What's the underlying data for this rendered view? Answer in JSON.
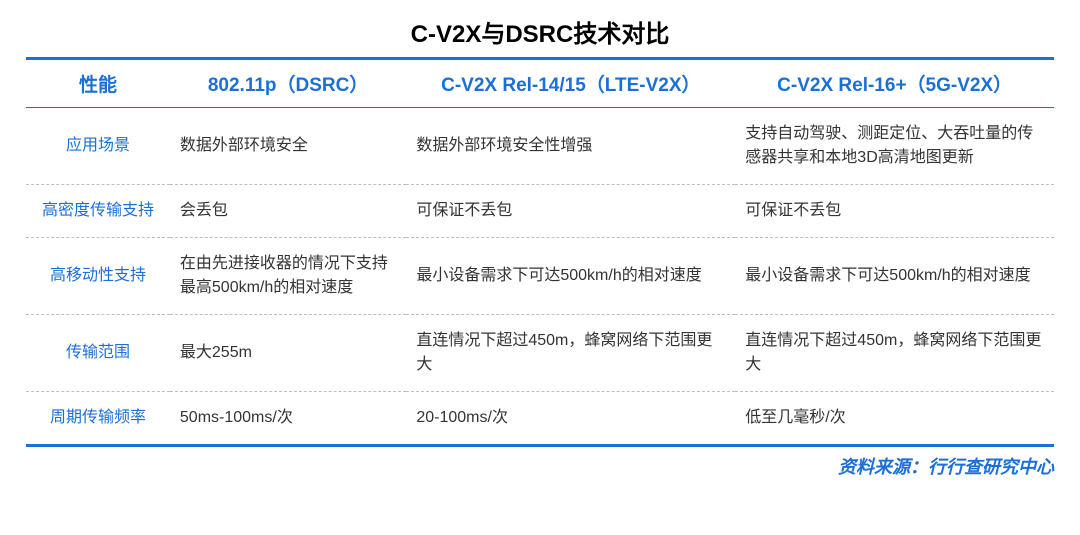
{
  "title": "C-V2X与DSRC技术对比",
  "title_fontsize": 24,
  "header_color": "#1b6fd7",
  "border_color": "#1b6fd7",
  "dash_color": "#bfbfbf",
  "body_text_color": "#333333",
  "background_color": "#ffffff",
  "header_fontsize": 19,
  "cell_fontsize": 16,
  "source_fontsize": 18,
  "col_widths": [
    "14%",
    "23%",
    "32%",
    "31%"
  ],
  "columns": [
    "性能",
    "802.11p（DSRC）",
    "C-V2X Rel-14/15（LTE-V2X）",
    "C-V2X Rel-16+（5G-V2X）"
  ],
  "rows": [
    {
      "label": "应用场景",
      "cells": [
        "数据外部环境安全",
        "数据外部环境安全性增强",
        "支持自动驾驶、测距定位、大吞吐量的传感器共享和本地3D高清地图更新"
      ]
    },
    {
      "label": "高密度传输支持",
      "cells": [
        "会丢包",
        "可保证不丢包",
        "可保证不丢包"
      ]
    },
    {
      "label": "高移动性支持",
      "cells": [
        "在由先进接收器的情况下支持最高500km/h的相对速度",
        "最小设备需求下可达500km/h的相对速度",
        "最小设备需求下可达500km/h的相对速度"
      ]
    },
    {
      "label": "传输范围",
      "cells": [
        "最大255m",
        "直连情况下超过450m，蜂窝网络下范围更大",
        "直连情况下超过450m，蜂窝网络下范围更大"
      ]
    },
    {
      "label": "周期传输频率",
      "cells": [
        "50ms-100ms/次",
        "20-100ms/次",
        "低至几毫秒/次"
      ]
    }
  ],
  "source": "资料来源：行行查研究中心"
}
